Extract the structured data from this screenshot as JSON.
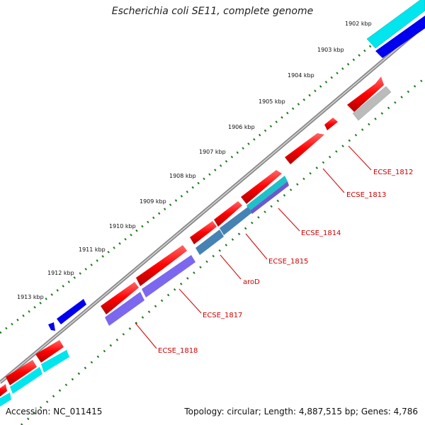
{
  "title": "Escherichia coli SE11, complete genome",
  "footer": {
    "accession": "Accession: NC_011415",
    "summary": "Topology: circular; Length: 4,887,515 bp; Genes: 4,786"
  },
  "ticks": [
    {
      "label": "1902 kbp"
    },
    {
      "label": "1903 kbp"
    },
    {
      "label": "1904 kbp"
    },
    {
      "label": "1905 kbp"
    },
    {
      "label": "1906 kbp"
    },
    {
      "label": "1907 kbp"
    },
    {
      "label": "1908 kbp"
    },
    {
      "label": "1909 kbp"
    },
    {
      "label": "1910 kbp"
    },
    {
      "label": "1911 kbp"
    },
    {
      "label": "1912 kbp"
    },
    {
      "label": "1913 kbp"
    }
  ],
  "genes": [
    {
      "label": "ECSE_1812"
    },
    {
      "label": "ECSE_1813"
    },
    {
      "label": "ECSE_1814"
    },
    {
      "label": "ECSE_1815"
    },
    {
      "label": "aroD"
    },
    {
      "label": "ECSE_1817"
    },
    {
      "label": "ECSE_1818"
    }
  ],
  "colors": {
    "forward_gene": "#ff0000",
    "reverse_gene": "#0000ee",
    "cds_cyan": "#00ffff",
    "cds_purple": "#7b68ee",
    "cds_steelblue": "#4682b4",
    "cds_gray": "#bbbbbb",
    "backbone": "#808080",
    "tick_dots": "#1a7a1a",
    "label": "#cc0000"
  }
}
